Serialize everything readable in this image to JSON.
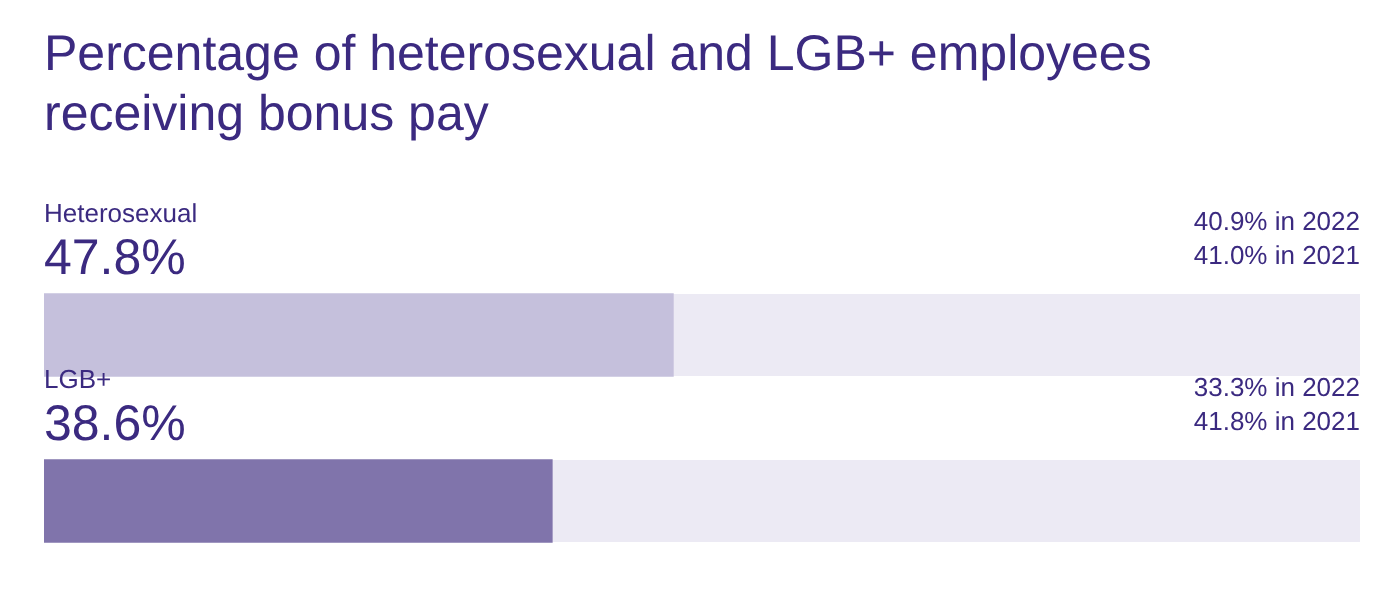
{
  "chart_data": {
    "type": "bar",
    "orientation": "horizontal",
    "title": "Percentage of heterosexual and LGB+ employees receiving bonus pay",
    "categories": [
      "Heterosexual",
      "LGB+"
    ],
    "values": [
      47.8,
      38.6
    ],
    "value_labels": [
      "47.8%",
      "38.6%"
    ],
    "colors": [
      "#c5c0dc",
      "#8074ab"
    ],
    "xlim": [
      0,
      100
    ],
    "tick_labels": false,
    "legend": false,
    "annotations": [
      "40.9% in 2022",
      "41.0% in 2021",
      "33.3% in 2022",
      "41.8% in 2021"
    ]
  }
}
